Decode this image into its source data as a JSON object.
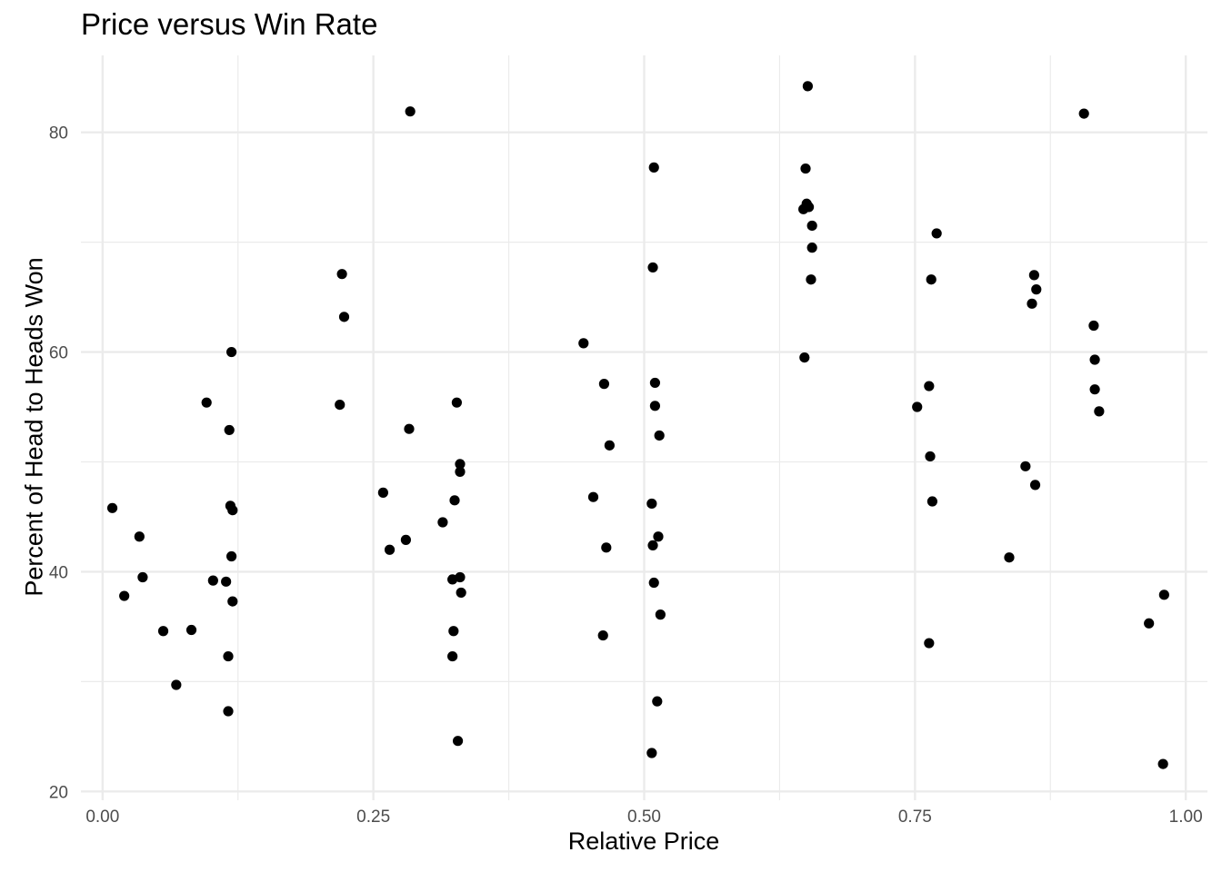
{
  "chart_data": {
    "type": "scatter",
    "title": "Price versus Win Rate",
    "xlabel": "Relative Price",
    "ylabel": "Percent of Head to Heads Won",
    "xlim": [
      -0.02,
      1.02
    ],
    "ylim": [
      19.2,
      87
    ],
    "x_ticks": [
      0.0,
      0.25,
      0.5,
      0.75,
      1.0
    ],
    "x_tick_labels": [
      "0.00",
      "0.25",
      "0.50",
      "0.75",
      "1.00"
    ],
    "x_minor_ticks": [
      0.125,
      0.375,
      0.625,
      0.875
    ],
    "y_ticks": [
      20,
      40,
      60,
      80
    ],
    "y_tick_labels": [
      "20",
      "40",
      "60",
      "80"
    ],
    "y_minor_ticks": [
      30,
      50,
      70
    ],
    "grid": true,
    "legend": "none",
    "point_color": "#000000",
    "grid_color": "#ebebeb",
    "points": [
      {
        "x": 0.009,
        "y": 45.8
      },
      {
        "x": 0.02,
        "y": 37.8
      },
      {
        "x": 0.034,
        "y": 43.2
      },
      {
        "x": 0.037,
        "y": 39.5
      },
      {
        "x": 0.056,
        "y": 34.6
      },
      {
        "x": 0.068,
        "y": 29.7
      },
      {
        "x": 0.082,
        "y": 34.7
      },
      {
        "x": 0.096,
        "y": 55.4
      },
      {
        "x": 0.102,
        "y": 39.2
      },
      {
        "x": 0.114,
        "y": 39.1
      },
      {
        "x": 0.116,
        "y": 32.3
      },
      {
        "x": 0.116,
        "y": 27.3
      },
      {
        "x": 0.117,
        "y": 52.9
      },
      {
        "x": 0.118,
        "y": 46.0
      },
      {
        "x": 0.119,
        "y": 41.4
      },
      {
        "x": 0.119,
        "y": 60.0
      },
      {
        "x": 0.12,
        "y": 45.6
      },
      {
        "x": 0.12,
        "y": 37.3
      },
      {
        "x": 0.219,
        "y": 55.2
      },
      {
        "x": 0.221,
        "y": 67.1
      },
      {
        "x": 0.223,
        "y": 63.2
      },
      {
        "x": 0.259,
        "y": 47.2
      },
      {
        "x": 0.265,
        "y": 42.0
      },
      {
        "x": 0.28,
        "y": 42.9
      },
      {
        "x": 0.283,
        "y": 53.0
      },
      {
        "x": 0.284,
        "y": 81.9
      },
      {
        "x": 0.314,
        "y": 44.5
      },
      {
        "x": 0.323,
        "y": 39.3
      },
      {
        "x": 0.323,
        "y": 32.3
      },
      {
        "x": 0.324,
        "y": 34.6
      },
      {
        "x": 0.325,
        "y": 46.5
      },
      {
        "x": 0.327,
        "y": 55.4
      },
      {
        "x": 0.328,
        "y": 24.6
      },
      {
        "x": 0.33,
        "y": 39.5
      },
      {
        "x": 0.33,
        "y": 49.8
      },
      {
        "x": 0.33,
        "y": 49.1
      },
      {
        "x": 0.331,
        "y": 38.1
      },
      {
        "x": 0.444,
        "y": 60.8
      },
      {
        "x": 0.453,
        "y": 46.8
      },
      {
        "x": 0.462,
        "y": 34.2
      },
      {
        "x": 0.463,
        "y": 57.1
      },
      {
        "x": 0.465,
        "y": 42.2
      },
      {
        "x": 0.468,
        "y": 51.5
      },
      {
        "x": 0.507,
        "y": 46.2
      },
      {
        "x": 0.507,
        "y": 23.5
      },
      {
        "x": 0.508,
        "y": 42.4
      },
      {
        "x": 0.508,
        "y": 67.7
      },
      {
        "x": 0.509,
        "y": 76.8
      },
      {
        "x": 0.509,
        "y": 39.0
      },
      {
        "x": 0.51,
        "y": 55.1
      },
      {
        "x": 0.51,
        "y": 57.2
      },
      {
        "x": 0.512,
        "y": 28.2
      },
      {
        "x": 0.513,
        "y": 43.2
      },
      {
        "x": 0.514,
        "y": 52.4
      },
      {
        "x": 0.515,
        "y": 36.1
      },
      {
        "x": 0.647,
        "y": 73.0
      },
      {
        "x": 0.648,
        "y": 59.5
      },
      {
        "x": 0.649,
        "y": 76.7
      },
      {
        "x": 0.65,
        "y": 73.5
      },
      {
        "x": 0.651,
        "y": 84.2
      },
      {
        "x": 0.652,
        "y": 73.2
      },
      {
        "x": 0.654,
        "y": 66.6
      },
      {
        "x": 0.655,
        "y": 69.5
      },
      {
        "x": 0.655,
        "y": 71.5
      },
      {
        "x": 0.752,
        "y": 55.0
      },
      {
        "x": 0.763,
        "y": 33.5
      },
      {
        "x": 0.763,
        "y": 56.9
      },
      {
        "x": 0.764,
        "y": 50.5
      },
      {
        "x": 0.765,
        "y": 66.6
      },
      {
        "x": 0.766,
        "y": 46.4
      },
      {
        "x": 0.77,
        "y": 70.8
      },
      {
        "x": 0.837,
        "y": 41.3
      },
      {
        "x": 0.852,
        "y": 49.6
      },
      {
        "x": 0.858,
        "y": 64.4
      },
      {
        "x": 0.86,
        "y": 67.0
      },
      {
        "x": 0.861,
        "y": 47.9
      },
      {
        "x": 0.862,
        "y": 65.7
      },
      {
        "x": 0.906,
        "y": 81.7
      },
      {
        "x": 0.915,
        "y": 62.4
      },
      {
        "x": 0.916,
        "y": 59.3
      },
      {
        "x": 0.916,
        "y": 56.6
      },
      {
        "x": 0.92,
        "y": 54.6
      },
      {
        "x": 0.966,
        "y": 35.3
      },
      {
        "x": 0.979,
        "y": 22.5
      },
      {
        "x": 0.98,
        "y": 37.9
      }
    ]
  }
}
